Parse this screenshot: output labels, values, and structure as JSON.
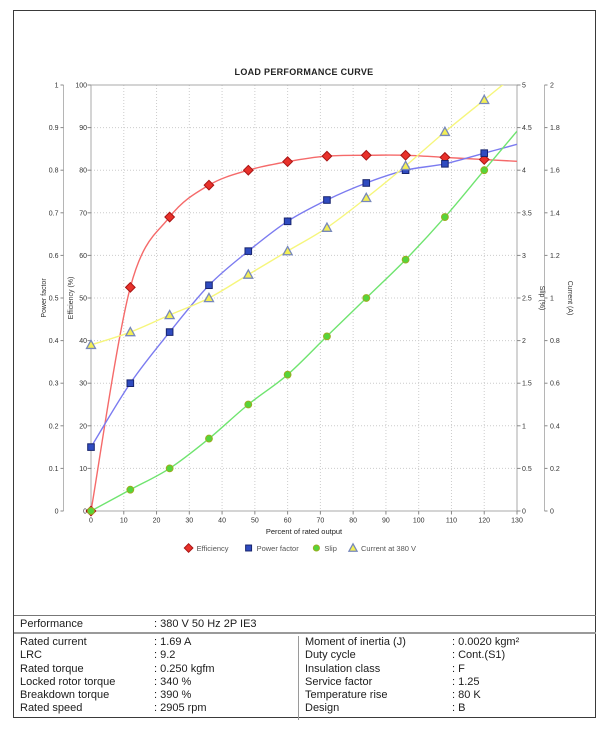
{
  "page": {
    "background": "#ffffff",
    "border_color": "#3a3a3a"
  },
  "chart_data": {
    "type": "line",
    "title": "LOAD PERFORMANCE CURVE",
    "xlabel": "Percent of rated output",
    "grid": "dotted",
    "legend_position": "bottom-center",
    "x": [
      0,
      12,
      24,
      36,
      48,
      60,
      72,
      84,
      96,
      108,
      120
    ],
    "axes": {
      "x": {
        "min": 0,
        "max": 130,
        "step": 10
      },
      "power_factor": {
        "label": "Power factor",
        "min": 0,
        "max": 1,
        "step": 0.1,
        "side": "left-outer"
      },
      "efficiency": {
        "label": "Efficiency (%)",
        "min": 0,
        "max": 100,
        "step": 10,
        "side": "left"
      },
      "slip": {
        "label": "Slip (%)",
        "min": 0,
        "max": 5,
        "step": 0.5,
        "side": "right"
      },
      "current": {
        "label": "Current (A)",
        "min": 0,
        "max": 2,
        "step": 0.2,
        "side": "right-outer"
      }
    },
    "series": [
      {
        "name": "Efficiency",
        "axis": "efficiency",
        "marker": "diamond",
        "line_color": "#f56a6a",
        "marker_fill": "#e8312a",
        "marker_stroke": "#a81414",
        "values": [
          0,
          52.5,
          69,
          76.5,
          80,
          82,
          83.3,
          83.5,
          83.5,
          83,
          82.5
        ]
      },
      {
        "name": "Power factor",
        "axis": "power_factor",
        "marker": "square",
        "line_color": "#7b7bf0",
        "marker_fill": "#2f4bc0",
        "marker_stroke": "#17246e",
        "values": [
          0.15,
          0.3,
          0.42,
          0.53,
          0.61,
          0.68,
          0.73,
          0.77,
          0.8,
          0.815,
          0.84
        ]
      },
      {
        "name": "Slip",
        "axis": "slip",
        "marker": "circle",
        "line_color": "#6fe46f",
        "marker_fill": "#55d53a",
        "marker_stroke": "#9aad20",
        "values": [
          0,
          0.25,
          0.5,
          0.85,
          1.25,
          1.6,
          2.05,
          2.5,
          2.95,
          3.45,
          4
        ]
      },
      {
        "name": "Current at 380 V",
        "axis": "current",
        "marker": "triangle",
        "line_color": "#f6f67c",
        "marker_fill": "#f3ef55",
        "marker_stroke": "#7788bb",
        "values": [
          0.78,
          0.84,
          0.92,
          1,
          1.11,
          1.22,
          1.33,
          1.47,
          1.62,
          1.78,
          1.93
        ]
      }
    ],
    "colors": {
      "grid": "#cccccc",
      "plot_border": "#a8a8a8",
      "tick_text": "#333333",
      "title_text": "#222222",
      "legend_text": "#555555"
    }
  },
  "table": {
    "header": {
      "label": "Performance",
      "value": ": 380 V 50 Hz 2P IE3"
    },
    "left_rows": [
      {
        "label": "Rated current",
        "value": ": 1.69 A"
      },
      {
        "label": "LRC",
        "value": ": 9.2"
      },
      {
        "label": "Rated torque",
        "value": ": 0.250 kgfm"
      },
      {
        "label": "Locked rotor torque",
        "value": ": 340 %"
      },
      {
        "label": "Breakdown torque",
        "value": ": 390 %"
      },
      {
        "label": "Rated speed",
        "value": ": 2905 rpm"
      }
    ],
    "right_rows": [
      {
        "label": "Moment of inertia (J)",
        "value": ": 0.0020 kgm²"
      },
      {
        "label": "Duty cycle",
        "value": ": Cont.(S1)"
      },
      {
        "label": "Insulation class",
        "value": ": F"
      },
      {
        "label": "Service factor",
        "value": ": 1.25"
      },
      {
        "label": "Temperature rise",
        "value": ": 80 K"
      },
      {
        "label": "Design",
        "value": ": B"
      }
    ]
  }
}
